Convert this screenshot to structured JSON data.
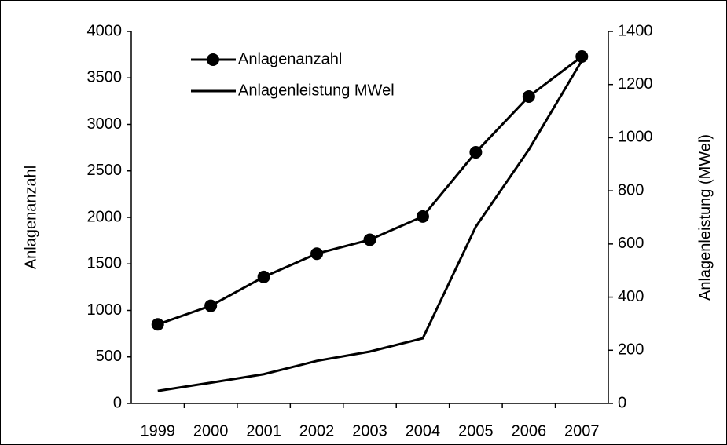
{
  "chart_data": {
    "type": "line",
    "categories": [
      "1999",
      "2000",
      "2001",
      "2002",
      "2003",
      "2004",
      "2005",
      "2006",
      "2007"
    ],
    "series": [
      {
        "name": "Anlagenanzahl",
        "color": "#000000",
        "marker": "circle",
        "values": [
          850,
          1050,
          1360,
          1610,
          1760,
          2010,
          2700,
          3300,
          3730
        ]
      },
      {
        "name": "Anlagenleistung  MWel",
        "color": "#000000",
        "axis": "y2",
        "values": [
          47,
          78,
          110,
          160,
          195,
          245,
          665,
          955,
          1290
        ]
      }
    ],
    "ylabel": "Anlagenanzahl",
    "y2label": "Anlagenleistung (MWel)",
    "ylim": [
      0,
      4000
    ],
    "yticks": [
      0,
      500,
      1000,
      1500,
      2000,
      2500,
      3000,
      3500,
      4000
    ],
    "y2lim": [
      0,
      1400
    ],
    "y2ticks": [
      0,
      200,
      400,
      600,
      800,
      1000,
      1200,
      1400
    ],
    "legend": "top-left",
    "grid": false
  }
}
